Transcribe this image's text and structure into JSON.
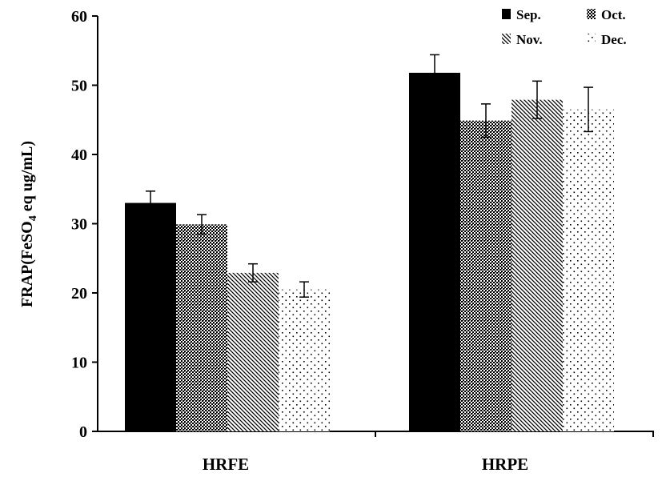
{
  "chart_data": {
    "type": "bar",
    "title": "",
    "xlabel": "",
    "ylabel": {
      "prefix": "FRAP(FeSO",
      "subscript": "4",
      "suffix": " eq ug/mL)"
    },
    "ylim": [
      0,
      60
    ],
    "yticks": [
      0,
      10,
      20,
      30,
      40,
      50,
      60
    ],
    "categories": [
      "HRFE",
      "HRPE"
    ],
    "series": [
      {
        "name": "Sep.",
        "values": [
          33,
          51.8
        ],
        "errors": [
          1.7,
          2.6
        ],
        "pattern": "solid-black"
      },
      {
        "name": "Oct.",
        "values": [
          29.9,
          44.9
        ],
        "errors": [
          1.4,
          2.4
        ],
        "pattern": "crosshatch"
      },
      {
        "name": "Nov.",
        "values": [
          22.9,
          47.9
        ],
        "errors": [
          1.3,
          2.7
        ],
        "pattern": "diagonal"
      },
      {
        "name": "Dec.",
        "values": [
          20.5,
          46.5
        ],
        "errors": [
          1.1,
          3.2
        ],
        "pattern": "dots"
      }
    ],
    "legend_placement": "top-right",
    "grid": false
  }
}
